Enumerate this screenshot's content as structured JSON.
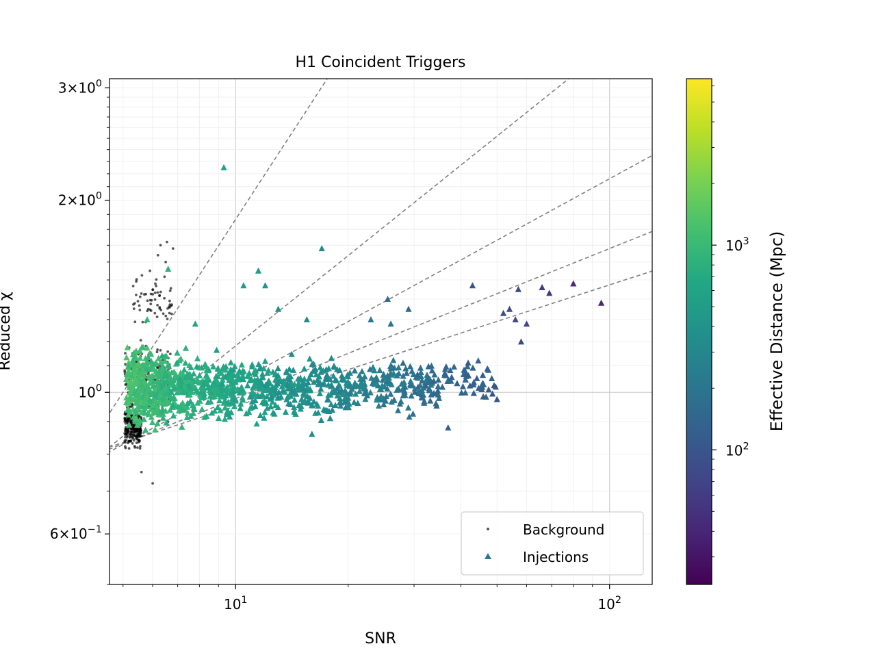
{
  "chart_data": {
    "type": "scatter",
    "title": "H1 Coincident Triggers",
    "xlabel": "SNR",
    "ylabel": "Reduced χ",
    "xscale": "log",
    "yscale": "log",
    "xlim": [
      4.6,
      130
    ],
    "ylim": [
      0.5,
      3.1
    ],
    "grid": true,
    "legend_position": "lower-right",
    "x_ticks": [
      {
        "value": 10,
        "base": "10",
        "exp": "1"
      },
      {
        "value": 100,
        "base": "10",
        "exp": "2"
      }
    ],
    "y_ticks": [
      {
        "value": 3,
        "mant": "3",
        "base": "10",
        "exp": "0"
      },
      {
        "value": 2,
        "mant": "2",
        "base": "10",
        "exp": "0"
      },
      {
        "value": 1,
        "mant": "",
        "base": "10",
        "exp": "0"
      },
      {
        "value": 0.6,
        "mant": "6",
        "base": "10",
        "exp": "−1"
      }
    ],
    "colorbar": {
      "label": "Effective Distance (Mpc)",
      "scale": "log",
      "range": [
        22,
        6500
      ],
      "colormap": "viridis",
      "ticks": [
        {
          "value": 100,
          "base": "10",
          "exp": "2"
        },
        {
          "value": 1000,
          "base": "10",
          "exp": "3"
        }
      ]
    },
    "legend": [
      "Background",
      "Injections"
    ],
    "series": [
      {
        "name": "Background",
        "marker": "dot",
        "color": "#000000",
        "clusters": [
          {
            "x": [
              5.05,
              5.6
            ],
            "y": [
              0.8,
              0.97
            ],
            "n": 260
          },
          {
            "x": [
              5.05,
              6.7
            ],
            "y": [
              0.88,
              1.22
            ],
            "n": 220
          },
          {
            "x": [
              5.3,
              6.8
            ],
            "y": [
              1.2,
              1.55
            ],
            "n": 60
          }
        ],
        "points": [
          {
            "x": 6.0,
            "y": 0.72
          },
          {
            "x": 5.6,
            "y": 0.75
          },
          {
            "x": 6.3,
            "y": 1.7
          },
          {
            "x": 6.55,
            "y": 1.72
          },
          {
            "x": 6.8,
            "y": 1.68
          },
          {
            "x": 6.2,
            "y": 1.64
          },
          {
            "x": 6.5,
            "y": 1.6
          },
          {
            "x": 5.9,
            "y": 1.55
          },
          {
            "x": 6.1,
            "y": 1.48
          }
        ]
      },
      {
        "name": "Injections",
        "marker": "triangle",
        "color_by": "Effective Distance (Mpc)",
        "clusters": [
          {
            "x": [
              5.1,
              6.5
            ],
            "y": [
              0.84,
              1.2
            ],
            "n": 320
          },
          {
            "x": [
              6.5,
              10
            ],
            "y": [
              0.87,
              1.17
            ],
            "n": 320
          },
          {
            "x": [
              10,
              20
            ],
            "y": [
              0.88,
              1.15
            ],
            "n": 320
          },
          {
            "x": [
              20,
              35
            ],
            "y": [
              0.9,
              1.15
            ],
            "n": 180
          },
          {
            "x": [
              35,
              50
            ],
            "y": [
              0.95,
              1.15
            ],
            "n": 50
          }
        ],
        "points": [
          {
            "x": 9.3,
            "y": 2.25,
            "d": 560
          },
          {
            "x": 17.0,
            "y": 1.68,
            "d": 330
          },
          {
            "x": 6.6,
            "y": 1.56,
            "d": 800
          },
          {
            "x": 11.5,
            "y": 1.55,
            "d": 470
          },
          {
            "x": 10.5,
            "y": 1.47,
            "d": 480
          },
          {
            "x": 12.0,
            "y": 1.47,
            "d": 430
          },
          {
            "x": 25.5,
            "y": 1.4,
            "d": 170
          },
          {
            "x": 29.0,
            "y": 1.35,
            "d": 150
          },
          {
            "x": 43.0,
            "y": 1.47,
            "d": 90
          },
          {
            "x": 57.0,
            "y": 1.45,
            "d": 75
          },
          {
            "x": 66.0,
            "y": 1.46,
            "d": 60
          },
          {
            "x": 69.0,
            "y": 1.43,
            "d": 55
          },
          {
            "x": 80.0,
            "y": 1.48,
            "d": 45
          },
          {
            "x": 95.0,
            "y": 1.38,
            "d": 40
          },
          {
            "x": 54.0,
            "y": 1.35,
            "d": 80
          },
          {
            "x": 56.0,
            "y": 1.3,
            "d": 75
          },
          {
            "x": 60.0,
            "y": 1.28,
            "d": 70
          },
          {
            "x": 52.0,
            "y": 1.33,
            "d": 85
          },
          {
            "x": 58.0,
            "y": 1.2,
            "d": 80
          },
          {
            "x": 50.0,
            "y": 0.975,
            "d": 90
          },
          {
            "x": 37.0,
            "y": 0.88,
            "d": 120
          },
          {
            "x": 13.0,
            "y": 1.35,
            "d": 370
          },
          {
            "x": 15.5,
            "y": 1.3,
            "d": 320
          },
          {
            "x": 23.0,
            "y": 1.3,
            "d": 200
          },
          {
            "x": 26.0,
            "y": 1.28,
            "d": 190
          },
          {
            "x": 16.0,
            "y": 0.86,
            "d": 330
          },
          {
            "x": 5.8,
            "y": 1.3,
            "d": 900
          },
          {
            "x": 7.8,
            "y": 1.28,
            "d": 600
          }
        ]
      }
    ],
    "guide_curves": {
      "style": "dashed",
      "color": "#808080",
      "curves": [
        {
          "x0": 5.0,
          "k": 0.9
        },
        {
          "x0": 7.0,
          "k": 0.47
        },
        {
          "x0": 9.0,
          "k": 0.32
        },
        {
          "x0": 11.0,
          "k": 0.235
        },
        {
          "x0": 13.0,
          "k": 0.19
        }
      ]
    }
  }
}
